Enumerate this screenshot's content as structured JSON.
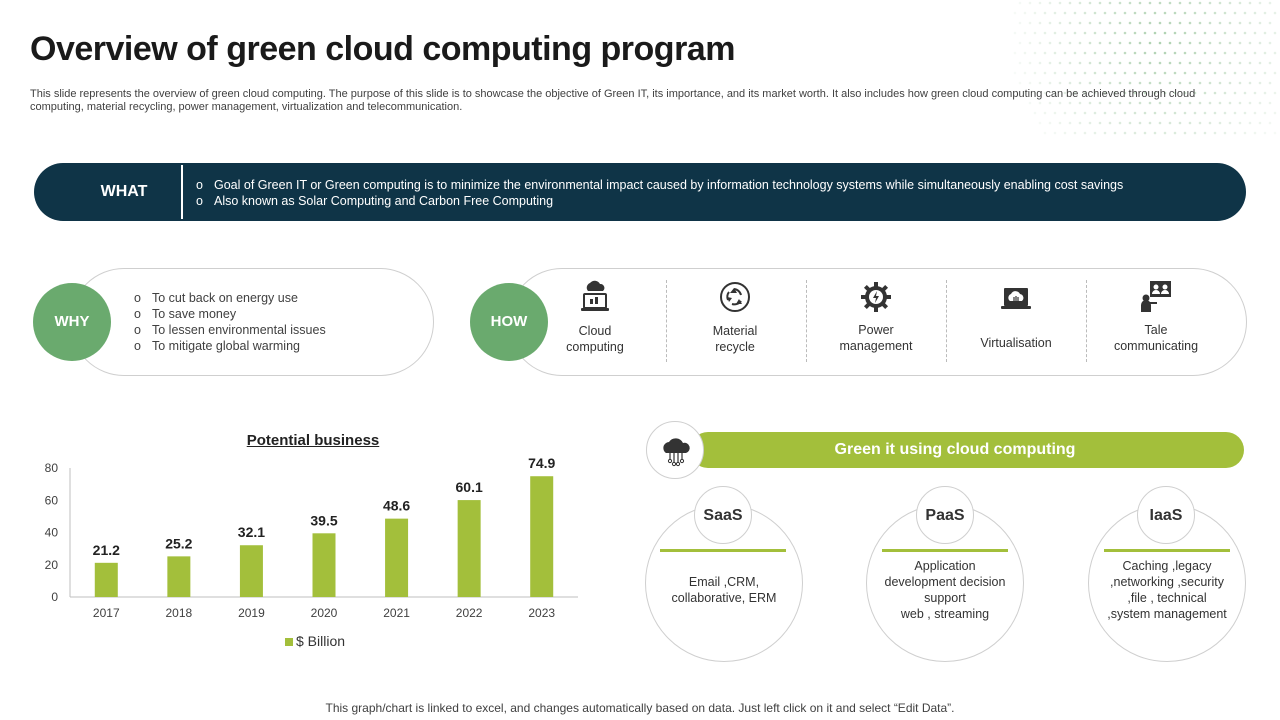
{
  "title": "Overview of green cloud computing program",
  "subtitle": "This slide represents the overview of green cloud computing. The purpose of this slide is to showcase the objective of Green IT, its importance, and its market worth. It also includes how green cloud computing can be achieved through cloud computing, material recycling, power management, virtualization and telecommunication.",
  "what": {
    "label": "WHAT",
    "items": [
      "Goal of Green IT or Green computing is to minimize the environmental  impact caused by information  technology systems while simultaneously enabling cost savings",
      "Also known as Solar Computing and Carbon Free Computing"
    ]
  },
  "why": {
    "label": "WHY",
    "items": [
      "To cut back on energy  use",
      "To save  money",
      "To lessen environmental  issues",
      "To mitigate global warming"
    ]
  },
  "how": {
    "label": "HOW",
    "items": [
      {
        "line1": "Cloud",
        "line2": "computing",
        "icon": "cloud-laptop-icon"
      },
      {
        "line1": "Material",
        "line2": "recycle",
        "icon": "recycle-icon"
      },
      {
        "line1": "Power",
        "line2": "management",
        "icon": "power-gear-icon"
      },
      {
        "line1": "Virtualisation",
        "line2": "",
        "icon": "virtual-cloud-laptop-icon"
      },
      {
        "line1": "Tale",
        "line2": "communicating",
        "icon": "telecom-presenter-icon"
      }
    ]
  },
  "chart_data": {
    "type": "bar",
    "title": "Potential business",
    "categories": [
      "2017",
      "2018",
      "2019",
      "2020",
      "2021",
      "2022",
      "2023"
    ],
    "series": [
      {
        "name": "$ Billion",
        "values": [
          21.2,
          25.2,
          32.1,
          39.5,
          48.6,
          60.1,
          74.9
        ]
      }
    ],
    "ylim": [
      0,
      80
    ],
    "yticks": [
      0,
      20,
      40,
      60,
      80
    ],
    "grid": false,
    "legend": "bottom",
    "color": "#a3bf3b"
  },
  "green_it": {
    "title": "Green it using cloud computing",
    "icon": "cloud-network-icon",
    "services": [
      {
        "name": "SaaS",
        "lines": [
          "Email ,CRM,",
          "collaborative,  ERM"
        ]
      },
      {
        "name": "PaaS",
        "lines": [
          "Application",
          "development  decision",
          "support",
          "web  , streaming"
        ]
      },
      {
        "name": "IaaS",
        "lines": [
          "Caching ,legacy",
          ",networking ,security",
          ",file  , technical",
          ",system management"
        ]
      }
    ]
  },
  "footer": "This graph/chart is linked to excel,  and changes automatically based on data. Just left click on it and select “Edit Data”.",
  "colors": {
    "navy": "#0f3447",
    "green_circle": "#6aaa6e",
    "accent": "#a3bf3b"
  }
}
